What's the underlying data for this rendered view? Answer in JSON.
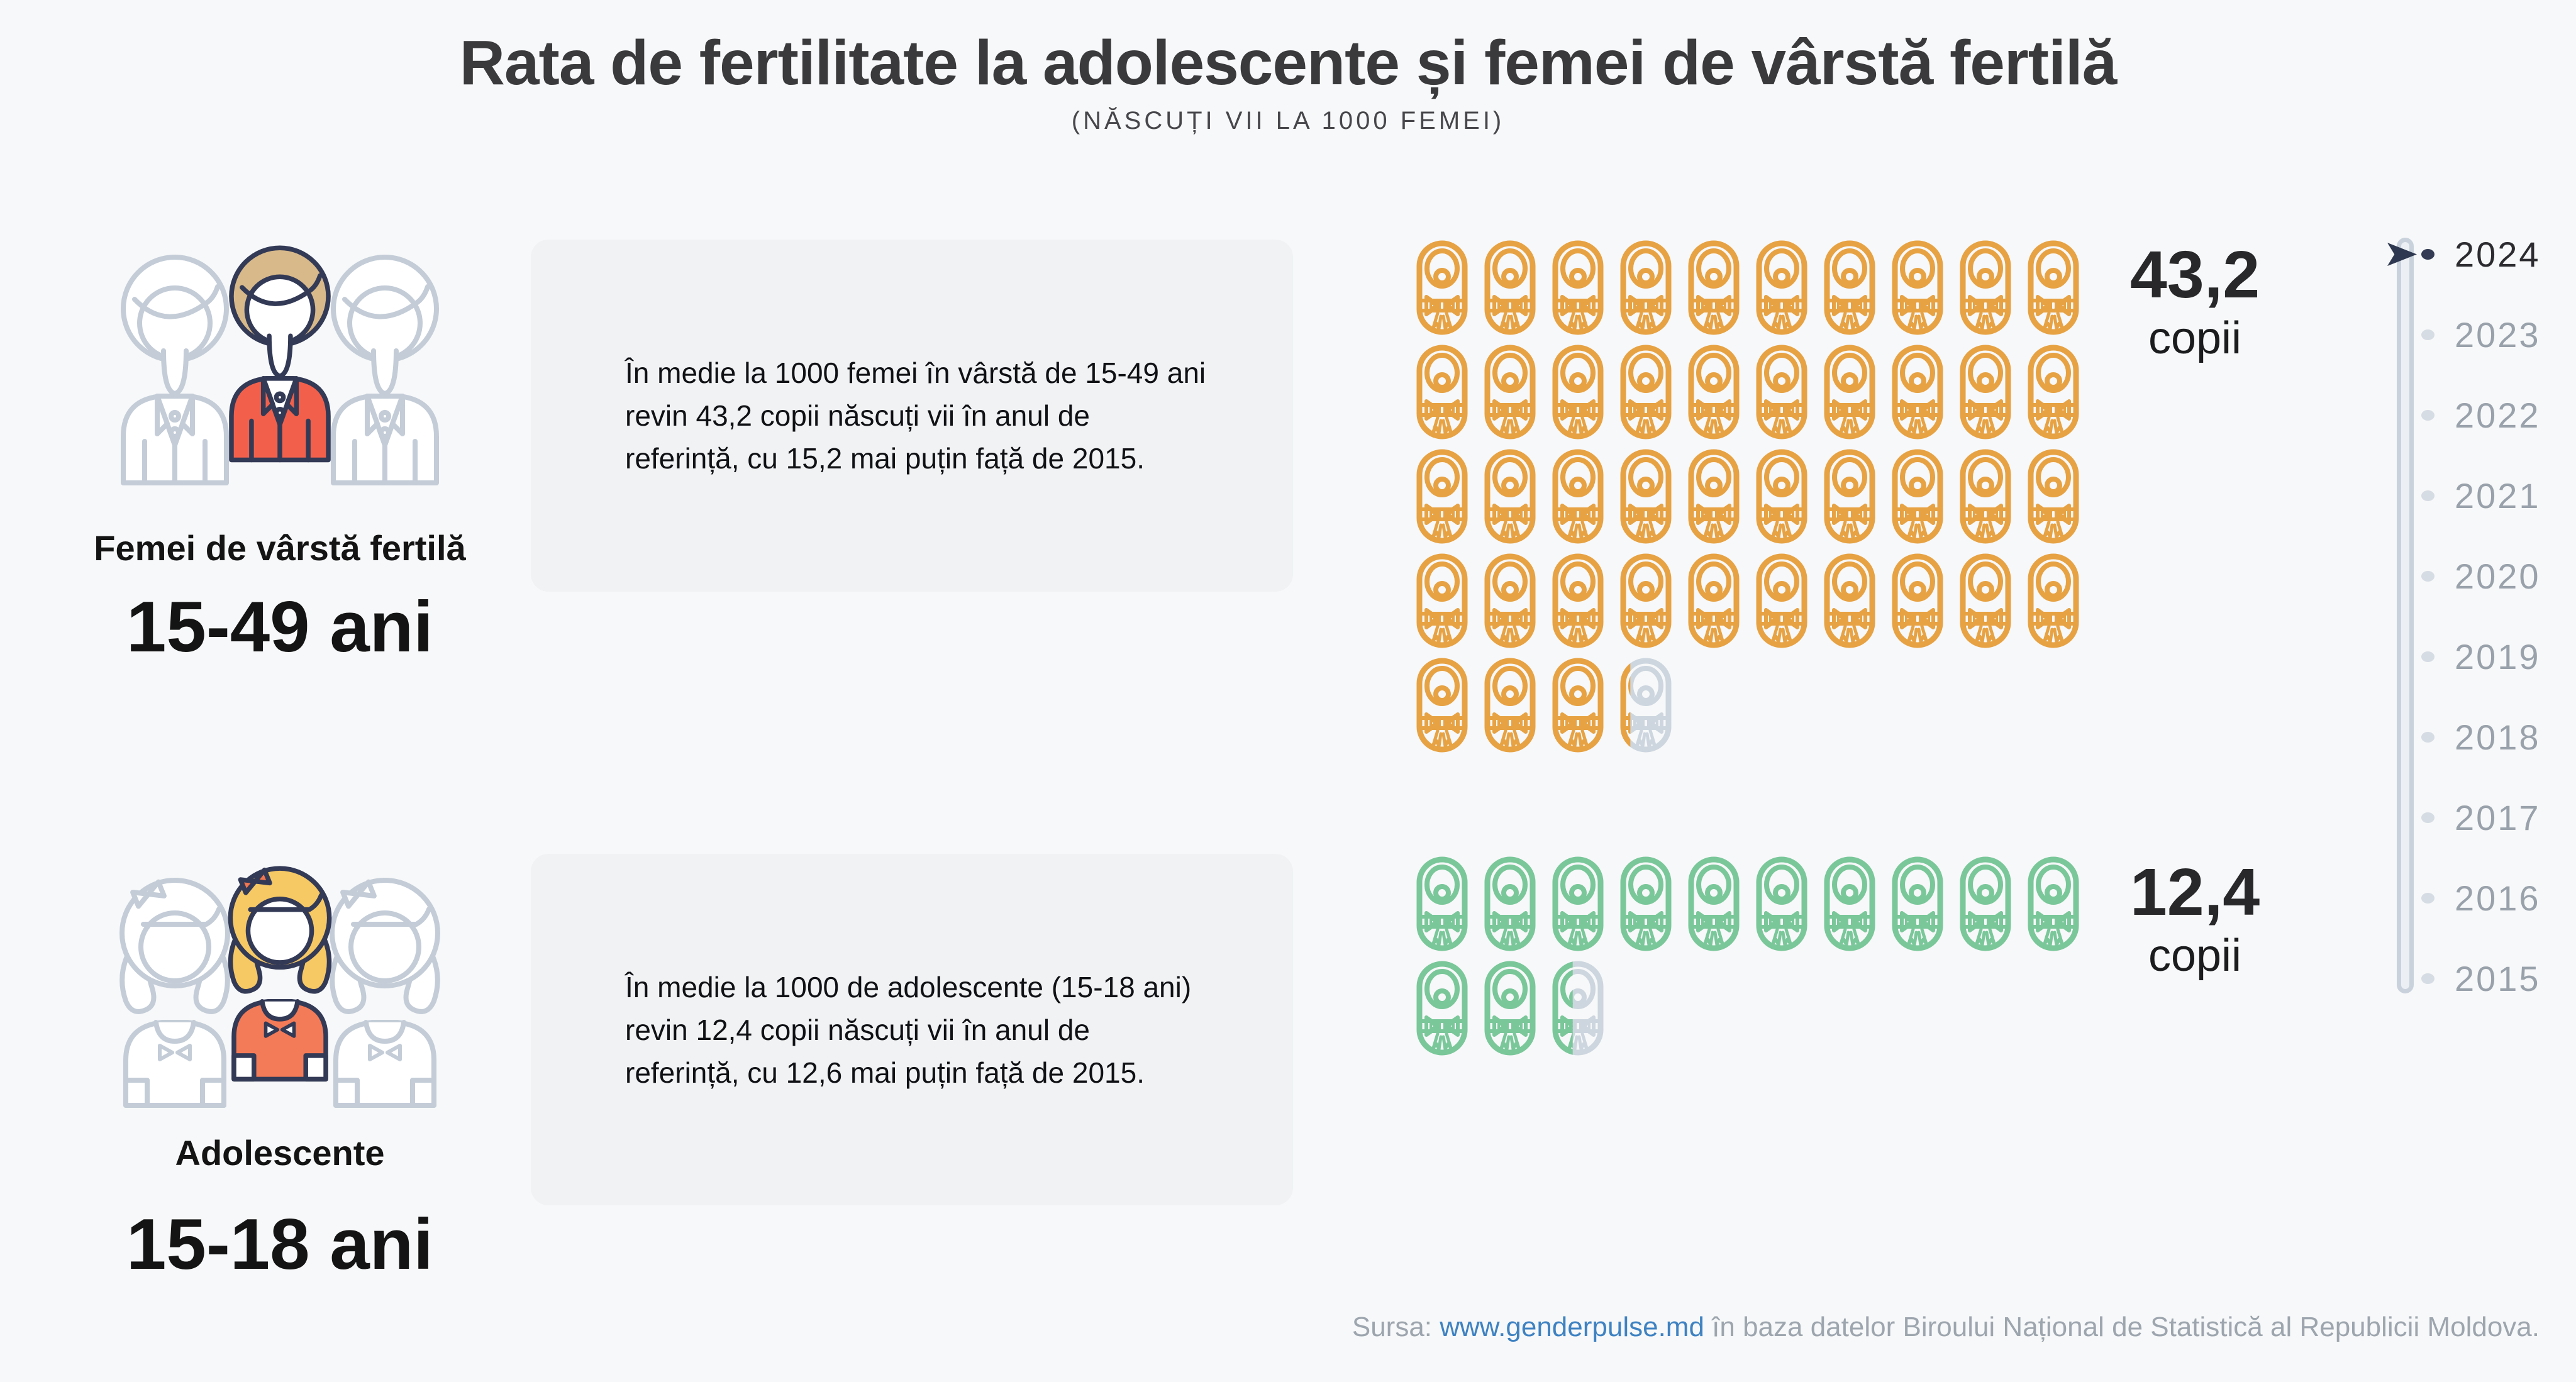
{
  "header": {
    "title": "Rata de fertilitate la adolescente și femei de vârstă fertilă",
    "subtitle": "(NĂSCUȚI VII LA 1000 FEMEI)"
  },
  "sections": [
    {
      "id": "femei-15-49",
      "label": "Femei de vârstă fertilă",
      "age": "15-49 ani",
      "description": "În medie la 1000 femei în vârstă de 15-49 ani revin 43,2 copii născuți vii în anul de referință, cu 15,2 mai puțin față de 2015.",
      "value_label": "43,2",
      "unit": "copii"
    },
    {
      "id": "adolescente-15-18",
      "label": "Adolescente",
      "age": "15-18 ani",
      "description": "În medie la 1000 de adolescente (15-18 ani) revin 12,4 copii născuți vii în anul de referință, cu 12,6 mai puțin față de 2015.",
      "value_label": "12,4",
      "unit": "copii"
    }
  ],
  "chart_data": {
    "type": "bar",
    "variant": "pictogram-isotype",
    "title": "Rata de fertilitate la adolescente și femei de vârstă fertilă",
    "unit": "copii născuți vii la 1000 femei",
    "reference_year": "2024",
    "baseline_year": "2015",
    "icons_per_row": 10,
    "icon_value": 1,
    "empty_color": "#CDD6DF",
    "categories": [
      "Femei de vârstă fertilă (15-49 ani)",
      "Adolescente (15-18 ani)"
    ],
    "series": [
      {
        "name": "Femei de vârstă fertilă (15-49 ani)",
        "value": 43.2,
        "value_label": "43,2 copii",
        "color": "#E7A243",
        "change_vs_baseline": -15.2
      },
      {
        "name": "Adolescente (15-18 ani)",
        "value": 12.4,
        "value_label": "12,4 copii",
        "color": "#7AC79A",
        "change_vs_baseline": -12.6
      }
    ]
  },
  "timeline": {
    "years": [
      "2024",
      "2023",
      "2022",
      "2021",
      "2020",
      "2019",
      "2018",
      "2017",
      "2016",
      "2015"
    ],
    "selected": "2024"
  },
  "footer": {
    "prefix": "Sursa:",
    "link": "www.genderpulse.md",
    "suffix": "în baza datelor Biroului Național de Statistică al Republicii Moldova."
  },
  "palette": {
    "background": "#F7F8F9",
    "card": "#F0F2F4",
    "accent_orange": "#E7A243",
    "accent_green": "#7AC79A",
    "icon_empty": "#CDD6DF",
    "navy_outline": "#333A56",
    "coat_red": "#F2604B",
    "hair_tan": "#D8B98A",
    "hair_yellow": "#F7C964",
    "shirt_orange": "#F47B57",
    "timeline_selected": "#2C2C30",
    "timeline_unselected": "#99A1AB",
    "link_blue": "#3E82C2",
    "footer_gray": "#9DA5AE"
  }
}
